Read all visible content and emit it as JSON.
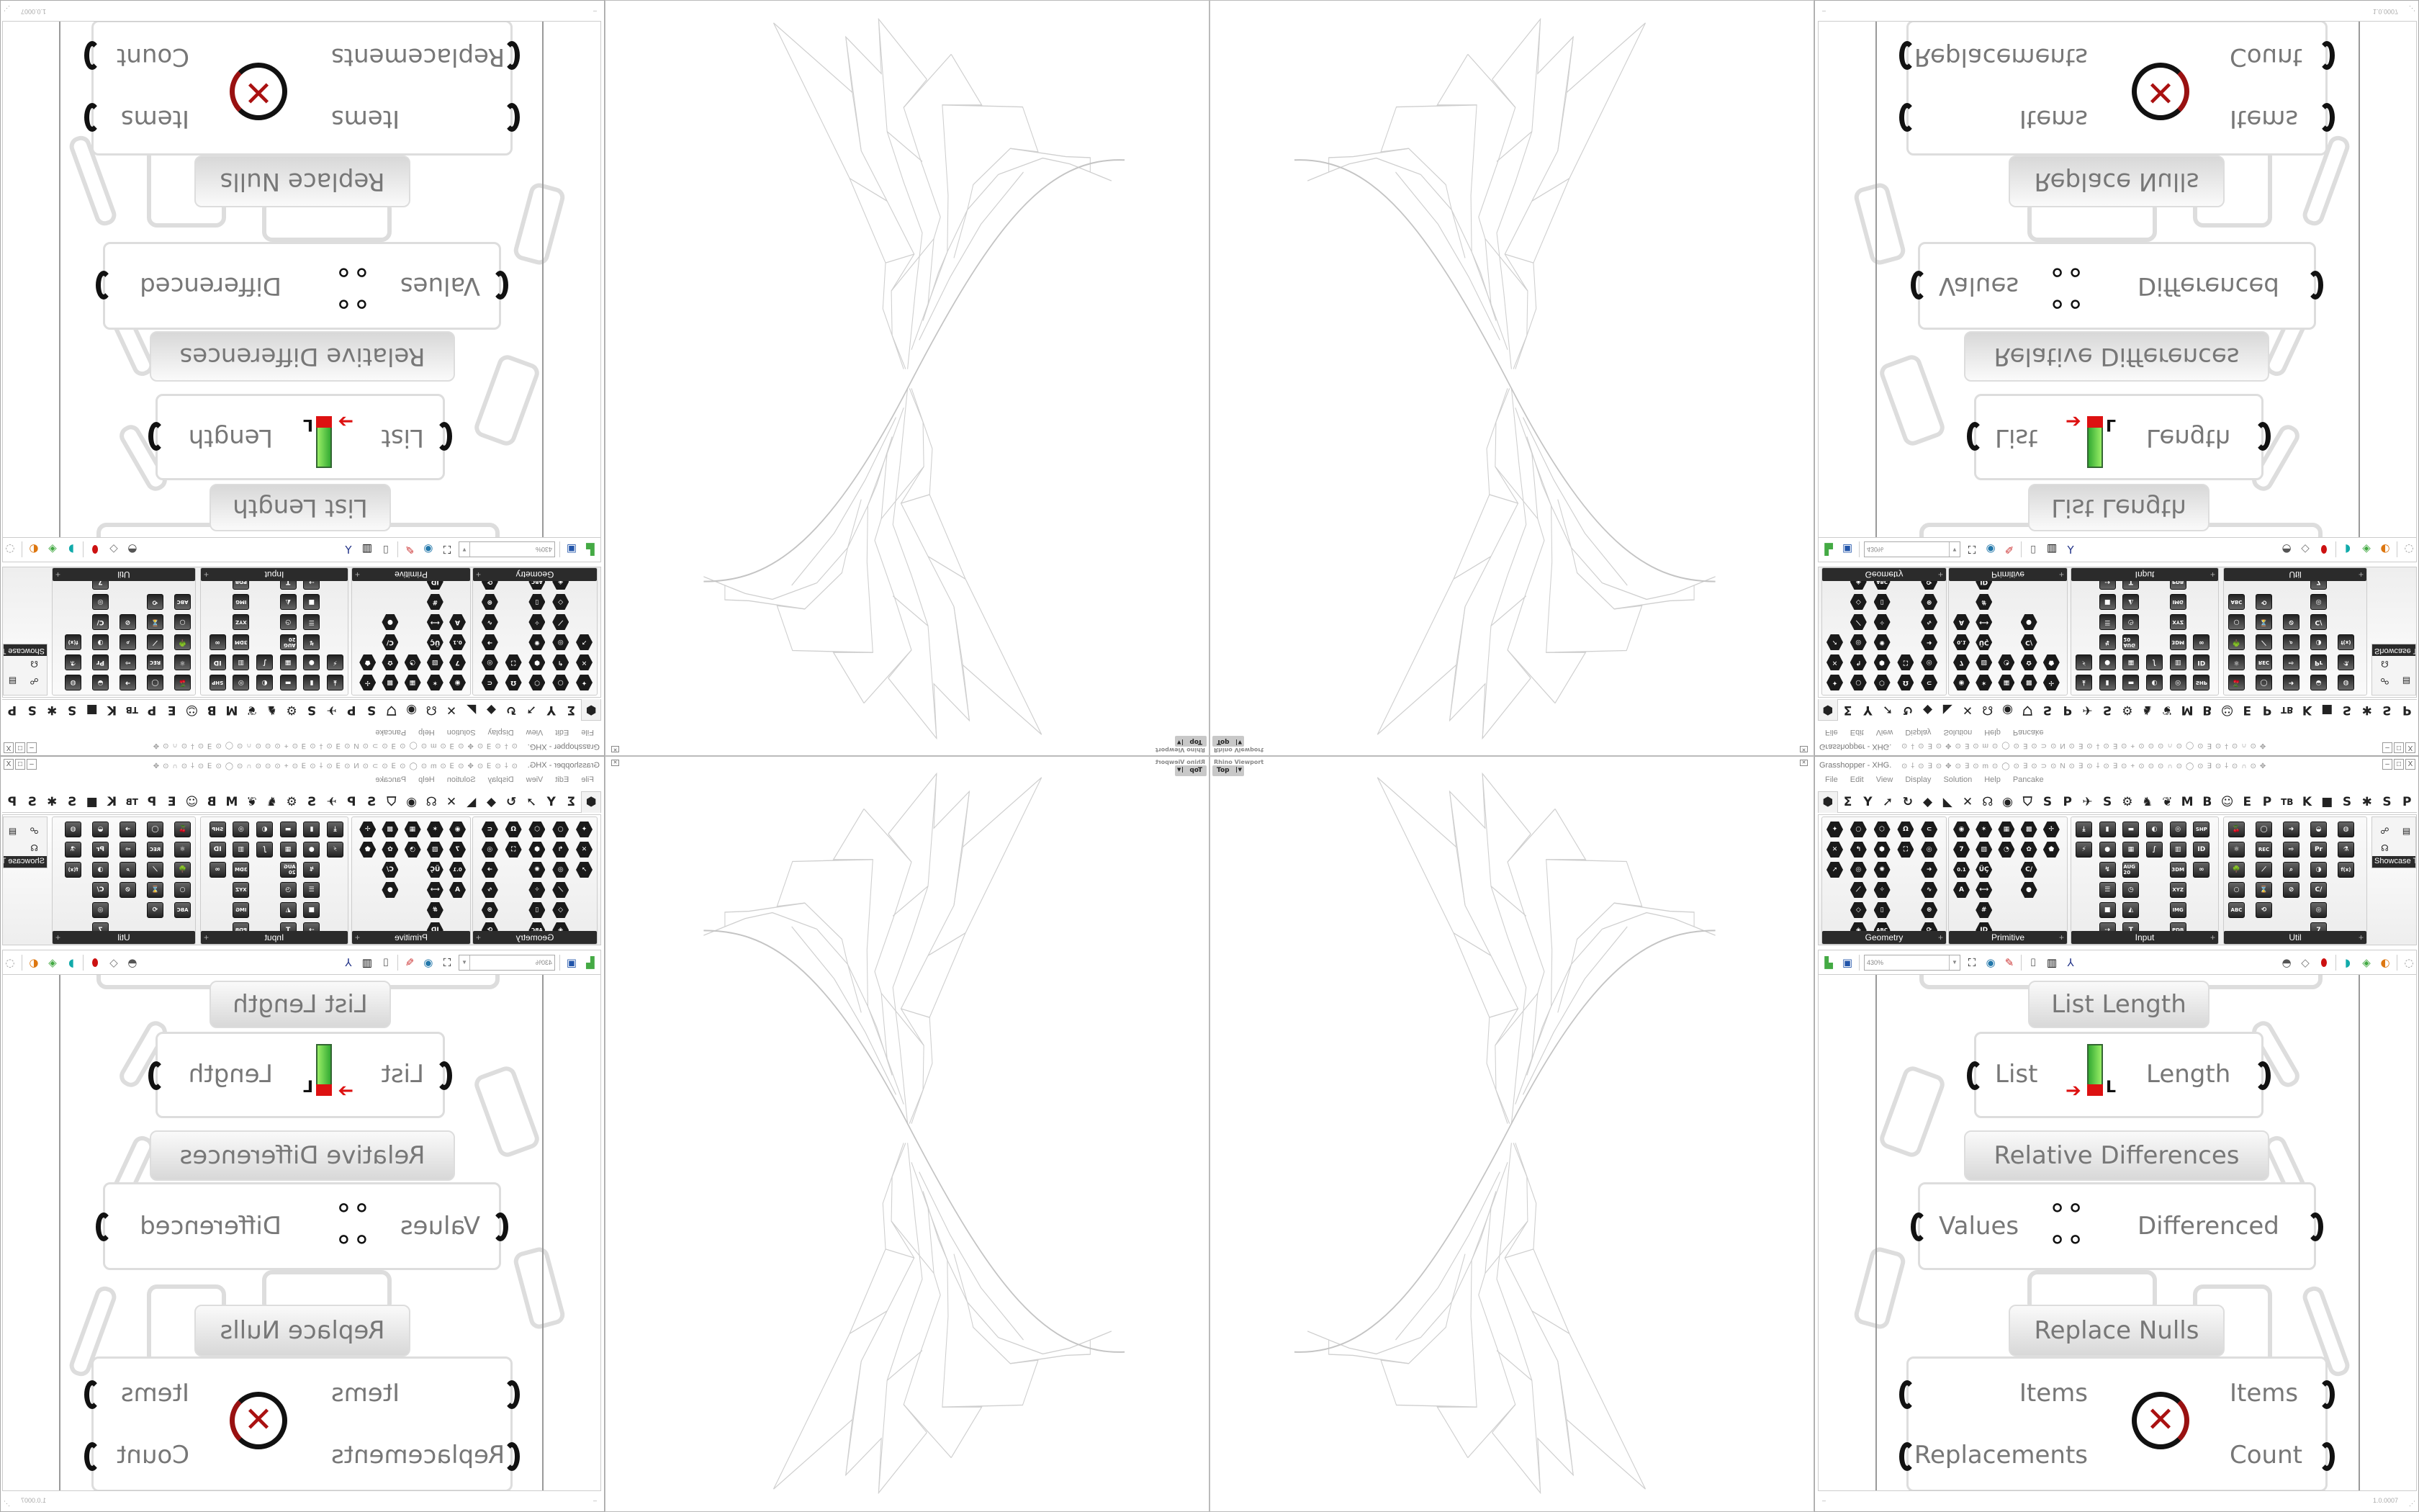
{
  "viewport": {
    "title": "Rhino Viewport",
    "view": "Top"
  },
  "window": {
    "title": "Grasshopper - XHG.",
    "buttons": [
      "–",
      "□",
      "X"
    ]
  },
  "menu": [
    "File",
    "Edit",
    "View",
    "Display",
    "Solution",
    "Help",
    "Pancake"
  ],
  "tabs": [
    "⬢",
    "Σ",
    "Y",
    "➚",
    "↻",
    "◆",
    "◣",
    "✕",
    "☊",
    "◉",
    "⛉",
    "S",
    "P",
    "✈",
    "S",
    "⚙",
    "♞",
    "❦",
    "M",
    "B",
    "☺",
    "E",
    "P",
    "TB",
    "K",
    "■",
    "S",
    "✱",
    "S",
    "P"
  ],
  "panels": [
    {
      "label": "Geometry",
      "columns": [
        [
          "✦",
          "✕",
          "➚"
        ],
        [
          "○",
          "↰",
          "◎",
          "⟋",
          "◇",
          "◈"
        ],
        [
          "⬡",
          "⬢",
          "✺",
          "✧",
          "▯",
          "ABC"
        ],
        [
          "Ω",
          "⛶"
        ],
        [
          "⊂",
          "◎",
          "➜",
          "∿",
          "⊛",
          "⟳"
        ]
      ]
    },
    {
      "label": "Primitive",
      "columns": [
        [
          "◉",
          "7",
          "0.1",
          "A"
        ],
        [
          "✶",
          "▧",
          "ÜÇ",
          "⟷",
          "#",
          "ID"
        ],
        [
          "▦",
          "◔"
        ],
        [
          "▩",
          "✿",
          "C/",
          "●"
        ],
        [
          "✢",
          "⬟"
        ]
      ]
    },
    {
      "label": "Input",
      "columns": [
        [
          "⤓",
          "⚡"
        ],
        [
          "▮",
          "●",
          "↯",
          "☰",
          "■",
          "⇢"
        ],
        [
          "▬",
          "▦",
          "AUG 20",
          "◷",
          "◭",
          "T"
        ],
        [
          "◐",
          "∫"
        ],
        [
          "◎",
          "▥",
          "3DM",
          "XYZ",
          "IMG",
          "PDB"
        ],
        [
          "SHP",
          "ID",
          "∞"
        ]
      ]
    },
    {
      "label": "Util",
      "columns": [
        [
          "🍒",
          "⚛",
          "🌳",
          "○",
          "ABC"
        ],
        [
          "◯",
          "REC",
          "⟋",
          "⌛",
          "⟲"
        ],
        [
          "➜",
          "⇨",
          "⌕",
          "⊘"
        ],
        [
          "◒",
          "Pr",
          "◑",
          "C/",
          "◎",
          "7"
        ],
        [
          "◍",
          "⚗",
          "f(x)"
        ]
      ]
    }
  ],
  "showcase": {
    "label": "Showcase T...",
    "icons": [
      "plugin-icon",
      "link-icon",
      "presentation-icon"
    ]
  },
  "toolbar": {
    "zoom": "430%"
  },
  "canvas": {
    "list_length": {
      "label": "List Length",
      "input": "List",
      "output": "Length"
    },
    "relative_differences": {
      "label": "Relative Differences",
      "input": "Values",
      "output": "Differenced"
    },
    "replace_nulls": {
      "label": "Replace Nulls",
      "inputs": [
        "Items",
        "Replacements"
      ],
      "outputs": [
        "Items",
        "Count"
      ]
    }
  },
  "status": {
    "left": "–",
    "version": "1.0.0007"
  },
  "colors": {
    "panel_footer": "#2b2b2b",
    "component_text": "#777777",
    "wireframe": "#cfcfcf",
    "rail": "#9a9a9a"
  }
}
